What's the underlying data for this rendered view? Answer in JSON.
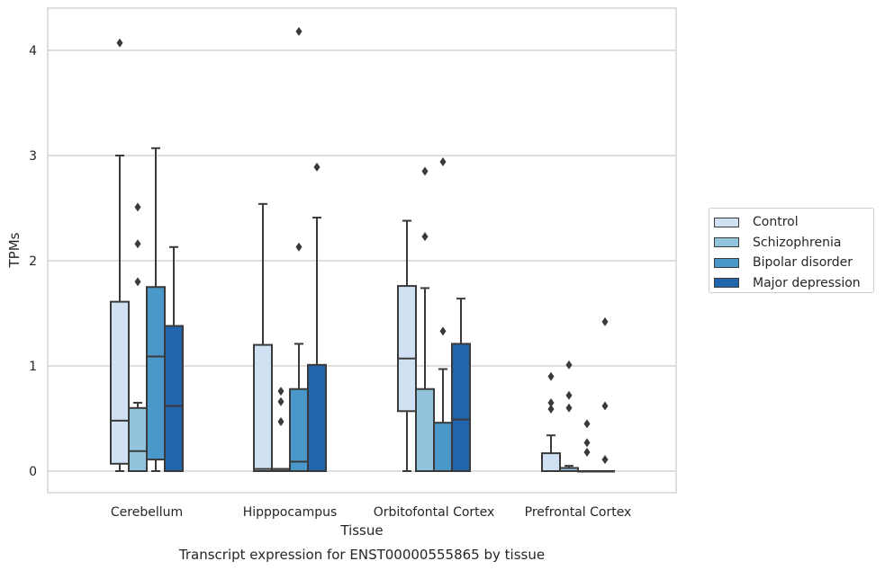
{
  "chart_data": {
    "type": "boxplot",
    "title": "Transcript expression for ENST00000555865 by tissue",
    "xlabel": "Tissue",
    "ylabel": "TPMs",
    "ylim": [
      -0.2,
      4.4
    ],
    "yticks": [
      "0",
      "1",
      "2",
      "3",
      "4"
    ],
    "grid": true,
    "legend_position": "right",
    "categories": [
      "Cerebellum",
      "Hipppocampus",
      "Orbitofontal Cortex",
      "Prefrontal Cortex"
    ],
    "series": [
      {
        "name": "Control",
        "color": "#cfe1f2",
        "boxes": [
          {
            "whislo": 0.0,
            "q1": 0.07,
            "median": 0.48,
            "q3": 1.61,
            "whishi": 3.0,
            "fliers": [
              4.07
            ]
          },
          {
            "whislo": 0.0,
            "q1": 0.0,
            "median": 0.02,
            "q3": 1.2,
            "whishi": 2.54,
            "fliers": []
          },
          {
            "whislo": 0.0,
            "q1": 0.57,
            "median": 1.07,
            "q3": 1.76,
            "whishi": 2.38,
            "fliers": []
          },
          {
            "whislo": 0.0,
            "q1": 0.0,
            "median": 0.0,
            "q3": 0.17,
            "whishi": 0.34,
            "fliers": [
              0.9,
              0.65,
              0.59
            ]
          }
        ]
      },
      {
        "name": "Schizophrenia",
        "color": "#93c4de",
        "boxes": [
          {
            "whislo": 0.0,
            "q1": 0.0,
            "median": 0.19,
            "q3": 0.6,
            "whishi": 0.65,
            "fliers": [
              2.51,
              2.16,
              1.8
            ]
          },
          {
            "whislo": 0.0,
            "q1": 0.0,
            "median": 0.02,
            "q3": 0.02,
            "whishi": 0.02,
            "fliers": [
              0.76,
              0.66,
              0.47
            ]
          },
          {
            "whislo": 0.0,
            "q1": 0.0,
            "median": 0.0,
            "q3": 0.78,
            "whishi": 1.74,
            "fliers": [
              2.85,
              2.23
            ]
          },
          {
            "whislo": 0.0,
            "q1": 0.0,
            "median": 0.0,
            "q3": 0.03,
            "whishi": 0.05,
            "fliers": [
              1.01,
              0.72,
              0.6
            ]
          }
        ]
      },
      {
        "name": "Bipolar disorder",
        "color": "#4a98c9",
        "boxes": [
          {
            "whislo": 0.0,
            "q1": 0.11,
            "median": 1.09,
            "q3": 1.75,
            "whishi": 3.07,
            "fliers": []
          },
          {
            "whislo": 0.0,
            "q1": 0.0,
            "median": 0.09,
            "q3": 0.78,
            "whishi": 1.21,
            "fliers": [
              4.18,
              2.13
            ]
          },
          {
            "whislo": 0.0,
            "q1": 0.0,
            "median": 0.0,
            "q3": 0.46,
            "whishi": 0.97,
            "fliers": [
              2.94,
              1.33
            ]
          },
          {
            "whislo": 0.0,
            "q1": 0.0,
            "median": 0.0,
            "q3": 0.0,
            "whishi": 0.0,
            "fliers": [
              0.45,
              0.27,
              0.18
            ]
          }
        ]
      },
      {
        "name": "Major depression",
        "color": "#2166ac",
        "boxes": [
          {
            "whislo": 0.0,
            "q1": 0.0,
            "median": 0.62,
            "q3": 1.38,
            "whishi": 2.13,
            "fliers": []
          },
          {
            "whislo": 0.0,
            "q1": 0.0,
            "median": 0.0,
            "q3": 1.01,
            "whishi": 2.41,
            "fliers": [
              2.89
            ]
          },
          {
            "whislo": 0.0,
            "q1": 0.0,
            "median": 0.49,
            "q3": 1.21,
            "whishi": 1.64,
            "fliers": []
          },
          {
            "whislo": 0.0,
            "q1": 0.0,
            "median": 0.0,
            "q3": 0.0,
            "whishi": 0.0,
            "fliers": [
              1.42,
              0.62,
              0.11
            ]
          }
        ]
      }
    ]
  }
}
